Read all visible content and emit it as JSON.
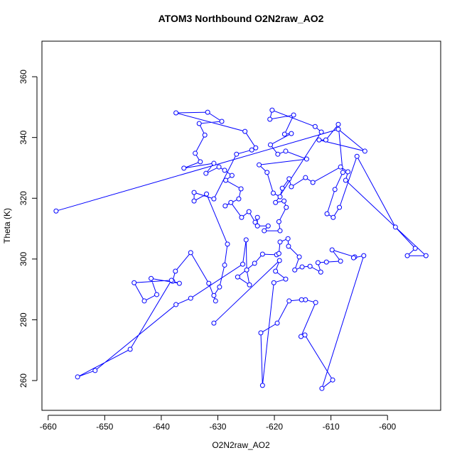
{
  "chart_data": {
    "type": "line",
    "marker": "open-circle",
    "title": "ATOM3 Northbound O2N2raw_AO2",
    "x_label": "O2N2raw_AO2",
    "y_label": "Theta (K)",
    "color": "#0000ff",
    "xlim": [
      -661.1,
      -590.6
    ],
    "ylim": [
      250.2,
      371.7
    ],
    "xticks": [
      -660,
      -650,
      -640,
      -630,
      -620,
      -610,
      -600
    ],
    "yticks": [
      260,
      280,
      300,
      320,
      340,
      360
    ],
    "x": [
      -658.6,
      -608.7,
      -604.0,
      -612.1,
      -610.9,
      -608.7,
      -607.9,
      -609.3,
      -610.7,
      -609.6,
      -608.5,
      -605.4,
      -598.6,
      -595.1,
      -596.5,
      -593.2,
      -607.4,
      -607.0,
      -608.3,
      -613.2,
      -614.5,
      -617.0,
      -617.4,
      -618.6,
      -619.0,
      -620.2,
      -621.3,
      -622.7,
      -614.3,
      -618.0,
      -619.4,
      -620.7,
      -617.0,
      -618.2,
      -616.6,
      -620.8,
      -620.4,
      -612.8,
      -611.7,
      -619.8,
      -618.3,
      -617.9,
      -619.2,
      -619.0,
      -621.8,
      -621.1,
      -623.0,
      -623.0,
      -623.4,
      -624.5,
      -625.8,
      -627.7,
      -628.7,
      -626.3,
      -625.9,
      -628.6,
      -627.5,
      -628.8,
      -629.8,
      -632.1,
      -630.7,
      -636.0,
      -633.1,
      -634.0,
      -632.3,
      -633.3,
      -629.3,
      -631.8,
      -637.4,
      -625.2,
      -623.3,
      -624.0,
      -626.7,
      -630.7,
      -634.2,
      -634.2,
      -632.0,
      -628.3,
      -628.8,
      -629.7,
      -630.7,
      -630.4,
      -631.6,
      -634.8,
      -637.5,
      -638.0,
      -636.8,
      -641.8,
      -640.8,
      -643.0,
      -644.8,
      -638.2,
      -645.5,
      -654.8,
      -651.7,
      -637.4,
      -634.8,
      -625.6,
      -625.0,
      -624.9,
      -624.4,
      -626.5,
      -623.5,
      -622.1,
      -619.6,
      -619.2,
      -619.0,
      -617.6,
      -617.5,
      -615.6,
      -616.4,
      -615.1,
      -613.7,
      -611.8,
      -612.3,
      -610.8,
      -608.3,
      -609.8,
      -605.8,
      -606.0,
      -604.2,
      -611.6,
      -609.7,
      -614.6,
      -615.3,
      -612.7,
      -614.5,
      -615.2,
      -617.4,
      -619.5,
      -622.4,
      -622.1,
      -620.1,
      -618.0,
      -619.8,
      -619.1,
      -630.7
    ],
    "values": [
      315.8,
      342.7,
      335.5,
      339.2,
      339.2,
      344.3,
      328.5,
      322.9,
      314.9,
      313.7,
      317.0,
      333.8,
      310.5,
      303.5,
      301.1,
      301.1,
      325.9,
      328.7,
      330.3,
      325.2,
      326.8,
      323.8,
      326.4,
      323.3,
      320.5,
      321.7,
      328.5,
      331.0,
      332.9,
      335.5,
      334.5,
      337.6,
      341.3,
      341.1,
      347.4,
      346.0,
      349.0,
      343.6,
      341.8,
      318.6,
      319.1,
      317.0,
      312.3,
      309.3,
      309.3,
      310.9,
      310.9,
      313.7,
      312.1,
      315.6,
      313.7,
      318.6,
      317.5,
      319.8,
      323.1,
      325.9,
      327.5,
      329.2,
      330.3,
      328.2,
      331.5,
      329.9,
      332.0,
      334.8,
      340.8,
      344.6,
      345.3,
      348.3,
      348.1,
      342.0,
      336.6,
      335.9,
      334.5,
      319.8,
      321.9,
      319.1,
      321.4,
      304.9,
      298.0,
      290.8,
      288.0,
      286.2,
      292.0,
      302.1,
      296.0,
      292.7,
      292.0,
      293.6,
      288.3,
      286.2,
      292.2,
      293.0,
      270.3,
      261.2,
      263.3,
      285.0,
      287.1,
      298.3,
      306.3,
      296.4,
      291.5,
      294.1,
      298.6,
      301.6,
      301.4,
      301.8,
      305.6,
      306.7,
      304.2,
      300.7,
      296.4,
      297.4,
      297.6,
      295.7,
      298.8,
      299.0,
      299.3,
      303.0,
      300.7,
      300.4,
      301.1,
      257.4,
      260.2,
      275.0,
      274.5,
      285.7,
      286.6,
      286.6,
      286.2,
      278.9,
      275.7,
      258.4,
      292.2,
      293.4,
      296.0,
      299.5,
      278.9
    ]
  }
}
